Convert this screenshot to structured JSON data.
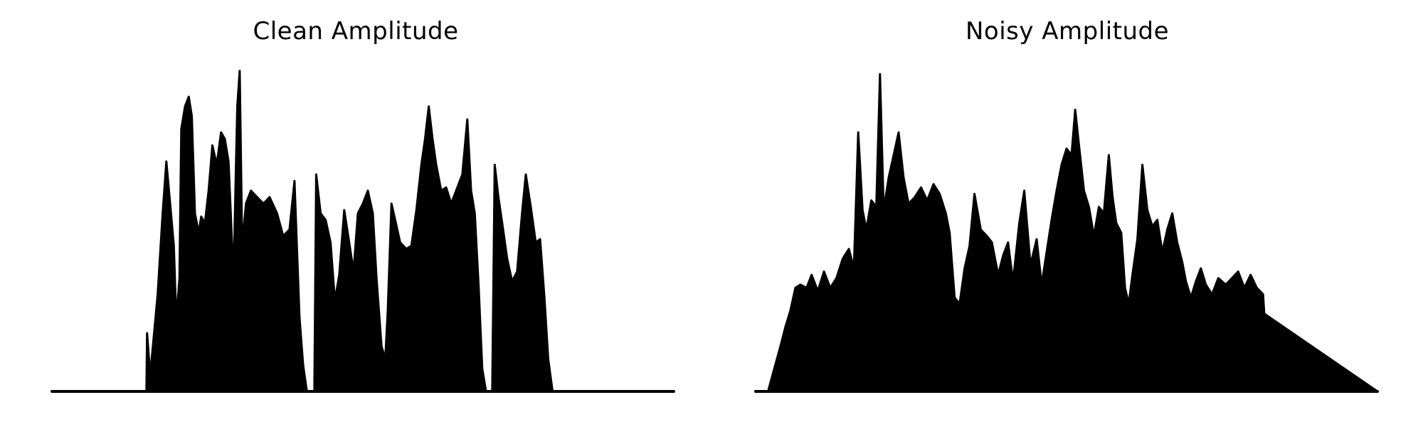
{
  "chart_data": [
    {
      "type": "area",
      "title": "Clean Amplitude",
      "xlabel": "",
      "ylabel": "",
      "ylim": [
        0,
        1
      ],
      "axes_visible": false,
      "grid": false,
      "color": "#000000",
      "envelope": [
        [
          0.0,
          0.0
        ],
        [
          0.152,
          0.0
        ],
        [
          0.153,
          0.18
        ],
        [
          0.158,
          0.05
        ],
        [
          0.17,
          0.3
        ],
        [
          0.178,
          0.55
        ],
        [
          0.184,
          0.71
        ],
        [
          0.19,
          0.58
        ],
        [
          0.196,
          0.45
        ],
        [
          0.2,
          0.22
        ],
        [
          0.205,
          0.35
        ],
        [
          0.208,
          0.81
        ],
        [
          0.214,
          0.88
        ],
        [
          0.22,
          0.91
        ],
        [
          0.225,
          0.85
        ],
        [
          0.23,
          0.55
        ],
        [
          0.236,
          0.49
        ],
        [
          0.24,
          0.54
        ],
        [
          0.246,
          0.52
        ],
        [
          0.252,
          0.62
        ],
        [
          0.258,
          0.76
        ],
        [
          0.265,
          0.7
        ],
        [
          0.272,
          0.8
        ],
        [
          0.278,
          0.78
        ],
        [
          0.284,
          0.71
        ],
        [
          0.292,
          0.35
        ],
        [
          0.298,
          0.88
        ],
        [
          0.302,
          0.99
        ],
        [
          0.306,
          0.45
        ],
        [
          0.312,
          0.58
        ],
        [
          0.32,
          0.62
        ],
        [
          0.33,
          0.6
        ],
        [
          0.34,
          0.58
        ],
        [
          0.35,
          0.6
        ],
        [
          0.362,
          0.55
        ],
        [
          0.372,
          0.48
        ],
        [
          0.382,
          0.5
        ],
        [
          0.39,
          0.65
        ],
        [
          0.398,
          0.23
        ],
        [
          0.404,
          0.08
        ],
        [
          0.41,
          0.0
        ],
        [
          0.422,
          0.0
        ],
        [
          0.425,
          0.67
        ],
        [
          0.432,
          0.55
        ],
        [
          0.44,
          0.53
        ],
        [
          0.448,
          0.46
        ],
        [
          0.455,
          0.28
        ],
        [
          0.462,
          0.36
        ],
        [
          0.47,
          0.56
        ],
        [
          0.478,
          0.46
        ],
        [
          0.485,
          0.37
        ],
        [
          0.492,
          0.55
        ],
        [
          0.5,
          0.58
        ],
        [
          0.508,
          0.62
        ],
        [
          0.516,
          0.55
        ],
        [
          0.522,
          0.35
        ],
        [
          0.53,
          0.14
        ],
        [
          0.536,
          0.1
        ],
        [
          0.54,
          0.25
        ],
        [
          0.546,
          0.58
        ],
        [
          0.552,
          0.53
        ],
        [
          0.56,
          0.46
        ],
        [
          0.57,
          0.44
        ],
        [
          0.578,
          0.45
        ],
        [
          0.586,
          0.56
        ],
        [
          0.594,
          0.7
        ],
        [
          0.6,
          0.78
        ],
        [
          0.606,
          0.88
        ],
        [
          0.612,
          0.78
        ],
        [
          0.618,
          0.7
        ],
        [
          0.626,
          0.62
        ],
        [
          0.634,
          0.63
        ],
        [
          0.642,
          0.58
        ],
        [
          0.65,
          0.62
        ],
        [
          0.66,
          0.67
        ],
        [
          0.668,
          0.84
        ],
        [
          0.674,
          0.62
        ],
        [
          0.68,
          0.55
        ],
        [
          0.686,
          0.33
        ],
        [
          0.692,
          0.07
        ],
        [
          0.698,
          0.0
        ],
        [
          0.708,
          0.0
        ],
        [
          0.712,
          0.7
        ],
        [
          0.718,
          0.6
        ],
        [
          0.724,
          0.52
        ],
        [
          0.732,
          0.41
        ],
        [
          0.74,
          0.34
        ],
        [
          0.748,
          0.37
        ],
        [
          0.756,
          0.55
        ],
        [
          0.762,
          0.67
        ],
        [
          0.77,
          0.57
        ],
        [
          0.778,
          0.46
        ],
        [
          0.785,
          0.47
        ],
        [
          0.792,
          0.29
        ],
        [
          0.798,
          0.1
        ],
        [
          0.805,
          0.0
        ],
        [
          1.0,
          0.0
        ]
      ]
    },
    {
      "type": "area",
      "title": "Noisy Amplitude",
      "xlabel": "",
      "ylabel": "",
      "ylim": [
        0,
        1
      ],
      "axes_visible": false,
      "grid": false,
      "color": "#000000",
      "envelope": [
        [
          0.0,
          0.0
        ],
        [
          0.02,
          0.0
        ],
        [
          0.03,
          0.07
        ],
        [
          0.04,
          0.14
        ],
        [
          0.048,
          0.2
        ],
        [
          0.056,
          0.25
        ],
        [
          0.064,
          0.32
        ],
        [
          0.072,
          0.33
        ],
        [
          0.082,
          0.32
        ],
        [
          0.09,
          0.36
        ],
        [
          0.1,
          0.31
        ],
        [
          0.11,
          0.37
        ],
        [
          0.12,
          0.32
        ],
        [
          0.13,
          0.35
        ],
        [
          0.14,
          0.41
        ],
        [
          0.15,
          0.44
        ],
        [
          0.158,
          0.38
        ],
        [
          0.165,
          0.8
        ],
        [
          0.172,
          0.56
        ],
        [
          0.178,
          0.5
        ],
        [
          0.186,
          0.59
        ],
        [
          0.194,
          0.57
        ],
        [
          0.2,
          0.98
        ],
        [
          0.206,
          0.56
        ],
        [
          0.214,
          0.66
        ],
        [
          0.222,
          0.73
        ],
        [
          0.23,
          0.8
        ],
        [
          0.238,
          0.66
        ],
        [
          0.246,
          0.58
        ],
        [
          0.256,
          0.6
        ],
        [
          0.266,
          0.63
        ],
        [
          0.276,
          0.59
        ],
        [
          0.286,
          0.64
        ],
        [
          0.296,
          0.61
        ],
        [
          0.306,
          0.55
        ],
        [
          0.312,
          0.49
        ],
        [
          0.32,
          0.29
        ],
        [
          0.328,
          0.27
        ],
        [
          0.336,
          0.38
        ],
        [
          0.344,
          0.45
        ],
        [
          0.352,
          0.61
        ],
        [
          0.362,
          0.5
        ],
        [
          0.372,
          0.48
        ],
        [
          0.38,
          0.46
        ],
        [
          0.39,
          0.36
        ],
        [
          0.398,
          0.42
        ],
        [
          0.406,
          0.46
        ],
        [
          0.414,
          0.34
        ],
        [
          0.424,
          0.52
        ],
        [
          0.432,
          0.62
        ],
        [
          0.442,
          0.39
        ],
        [
          0.452,
          0.47
        ],
        [
          0.46,
          0.33
        ],
        [
          0.468,
          0.43
        ],
        [
          0.476,
          0.53
        ],
        [
          0.484,
          0.62
        ],
        [
          0.492,
          0.7
        ],
        [
          0.5,
          0.75
        ],
        [
          0.508,
          0.73
        ],
        [
          0.514,
          0.87
        ],
        [
          0.52,
          0.76
        ],
        [
          0.528,
          0.62
        ],
        [
          0.536,
          0.57
        ],
        [
          0.544,
          0.48
        ],
        [
          0.552,
          0.57
        ],
        [
          0.56,
          0.55
        ],
        [
          0.568,
          0.73
        ],
        [
          0.574,
          0.6
        ],
        [
          0.58,
          0.52
        ],
        [
          0.588,
          0.49
        ],
        [
          0.594,
          0.32
        ],
        [
          0.6,
          0.27
        ],
        [
          0.606,
          0.36
        ],
        [
          0.614,
          0.47
        ],
        [
          0.622,
          0.7
        ],
        [
          0.63,
          0.56
        ],
        [
          0.638,
          0.51
        ],
        [
          0.646,
          0.53
        ],
        [
          0.654,
          0.43
        ],
        [
          0.662,
          0.5
        ],
        [
          0.67,
          0.55
        ],
        [
          0.678,
          0.46
        ],
        [
          0.686,
          0.4
        ],
        [
          0.692,
          0.34
        ],
        [
          0.7,
          0.29
        ],
        [
          0.708,
          0.34
        ],
        [
          0.716,
          0.38
        ],
        [
          0.724,
          0.33
        ],
        [
          0.734,
          0.3
        ],
        [
          0.744,
          0.35
        ],
        [
          0.756,
          0.33
        ],
        [
          0.766,
          0.35
        ],
        [
          0.776,
          0.37
        ],
        [
          0.786,
          0.32
        ],
        [
          0.796,
          0.36
        ],
        [
          0.806,
          0.32
        ],
        [
          0.816,
          0.3
        ],
        [
          0.818,
          0.24
        ],
        [
          1.0,
          0.0
        ]
      ]
    }
  ]
}
